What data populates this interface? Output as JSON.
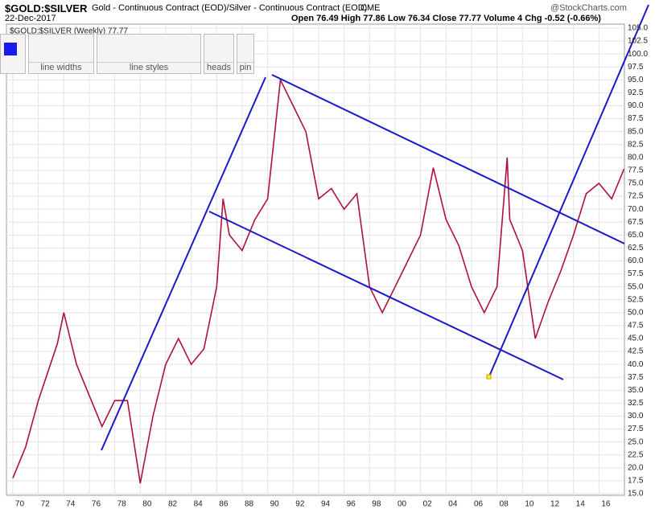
{
  "header": {
    "symbol": "$GOLD:$SILVER",
    "description": "Gold - Continuous Contract (EOD)/Silver - Continuous Contract (EOD)",
    "exchange": "CME",
    "brand": "@StockCharts.com",
    "date": "22-Dec-2017",
    "quote": "Open 76.49  High 77.86  Low 76.34  Close 77.77  Volume 4  Chg -0.52 (-0.66%)"
  },
  "toolbar": {
    "groups": [
      "line widths",
      "line styles",
      "heads",
      "pin"
    ]
  },
  "chart_data": {
    "type": "line",
    "legend": "$GOLD:$SILVER (Weekly) 77.77",
    "grid": true,
    "xlim": [
      1969.5,
      2018
    ],
    "ylim": [
      15,
      105
    ],
    "xticks": [
      {
        "value": 1970,
        "label": "70"
      },
      {
        "value": 1972,
        "label": "72"
      },
      {
        "value": 1974,
        "label": "74"
      },
      {
        "value": 1976,
        "label": "76"
      },
      {
        "value": 1978,
        "label": "78"
      },
      {
        "value": 1980,
        "label": "80"
      },
      {
        "value": 1982,
        "label": "82"
      },
      {
        "value": 1984,
        "label": "84"
      },
      {
        "value": 1986,
        "label": "86"
      },
      {
        "value": 1988,
        "label": "88"
      },
      {
        "value": 1990,
        "label": "90"
      },
      {
        "value": 1992,
        "label": "92"
      },
      {
        "value": 1994,
        "label": "94"
      },
      {
        "value": 1996,
        "label": "96"
      },
      {
        "value": 1998,
        "label": "98"
      },
      {
        "value": 2000,
        "label": "00"
      },
      {
        "value": 2002,
        "label": "02"
      },
      {
        "value": 2004,
        "label": "04"
      },
      {
        "value": 2006,
        "label": "06"
      },
      {
        "value": 2008,
        "label": "08"
      },
      {
        "value": 2010,
        "label": "10"
      },
      {
        "value": 2012,
        "label": "12"
      },
      {
        "value": 2014,
        "label": "14"
      },
      {
        "value": 2016,
        "label": "16"
      }
    ],
    "yticks": [
      {
        "value": 15,
        "label": "15.0"
      },
      17.5,
      {
        "value": 20,
        "label": "20.0"
      },
      22.5,
      {
        "value": 25,
        "label": "25.0"
      },
      27.5,
      {
        "value": 30,
        "label": "30.0"
      },
      32.5,
      {
        "value": 35,
        "label": "35.0"
      },
      37.5,
      {
        "value": 40,
        "label": "40.0"
      },
      42.5,
      {
        "value": 45,
        "label": "45.0"
      },
      47.5,
      {
        "value": 50,
        "label": "50.0"
      },
      52.5,
      {
        "value": 55,
        "label": "55.0"
      },
      57.5,
      {
        "value": 60,
        "label": "60.0"
      },
      62.5,
      {
        "value": 65,
        "label": "65.0"
      },
      67.5,
      {
        "value": 70,
        "label": "70.0"
      },
      72.5,
      {
        "value": 75,
        "label": "75.0"
      },
      77.5,
      {
        "value": 80,
        "label": "80.0"
      },
      82.5,
      {
        "value": 85,
        "label": "85.0"
      },
      87.5,
      {
        "value": 90,
        "label": "90.0"
      },
      92.5,
      {
        "value": 95,
        "label": "95.0"
      },
      97.5,
      {
        "value": 100,
        "label": "100.0"
      },
      102.5,
      {
        "value": 105,
        "label": "105.0"
      }
    ],
    "series": [
      {
        "name": "$GOLD:$SILVER",
        "color": "#b0103a",
        "x": [
          1970,
          1971,
          1972,
          1973.5,
          1974,
          1975,
          1976,
          1977,
          1978,
          1979,
          1980,
          1981,
          1982,
          1983,
          1984,
          1985,
          1986,
          1986.5,
          1987,
          1988,
          1989,
          1990,
          1991,
          1992,
          1993,
          1994,
          1995,
          1996,
          1997,
          1998,
          1999,
          2000,
          2001,
          2002,
          2003,
          2004,
          2005,
          2006,
          2007,
          2008,
          2008.8,
          2009,
          2010,
          2011,
          2012,
          2013,
          2014,
          2015,
          2016,
          2017,
          2017.97
        ],
        "values": [
          18,
          24,
          33,
          44,
          50,
          40,
          34,
          28,
          33,
          33,
          17,
          30,
          40,
          45,
          40,
          43,
          55,
          72,
          65,
          62,
          68,
          72,
          95,
          90,
          85,
          72,
          74,
          70,
          73,
          55,
          50,
          55,
          60,
          65,
          78,
          68,
          63,
          55,
          50,
          55,
          80,
          68,
          62,
          45,
          52,
          58,
          65,
          73,
          75,
          72,
          77.77
        ]
      }
    ]
  }
}
